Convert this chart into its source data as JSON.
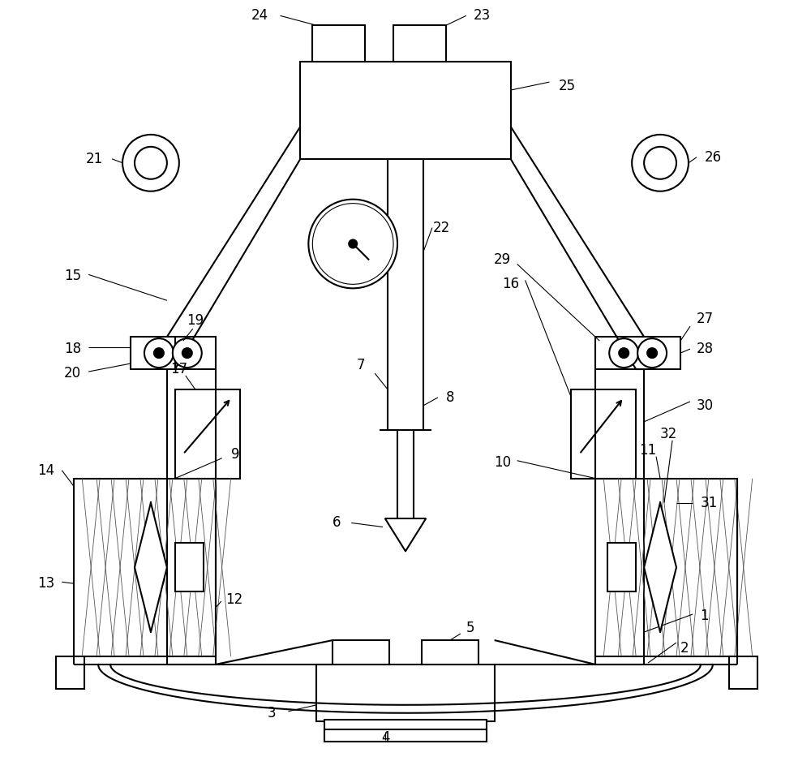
{
  "fig_width": 10.0,
  "fig_height": 9.33,
  "dpi": 100,
  "bg_color": "#ffffff",
  "line_color": "#000000",
  "lw": 1.5,
  "lw_thin": 0.8,
  "lw_hatch": 0.6,
  "fs": 12
}
